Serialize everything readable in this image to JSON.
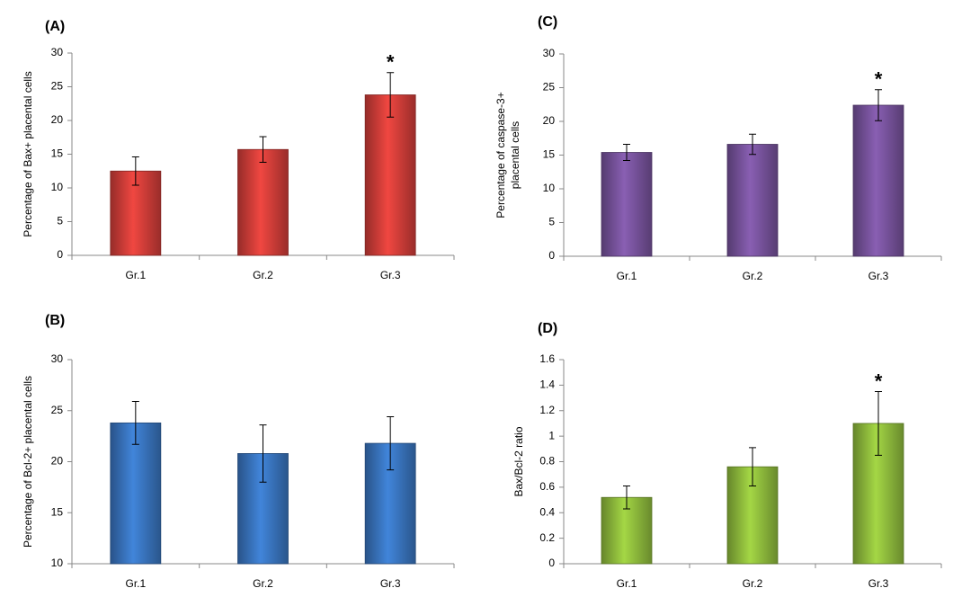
{
  "chart_data": [
    {
      "type": "bar",
      "title": "(A)",
      "ylabel": [
        "Percentage of Bax+ placental cells"
      ],
      "categories": [
        "Gr.1",
        "Gr.2",
        "Gr.3"
      ],
      "values": [
        12.5,
        15.7,
        23.8
      ],
      "errors": [
        2.1,
        1.9,
        3.3
      ],
      "annotations": [
        null,
        null,
        "*"
      ],
      "color": "#d63f3a",
      "ylim": [
        0,
        30
      ],
      "yticks": [
        0,
        5,
        10,
        15,
        20,
        25,
        30
      ]
    },
    {
      "type": "bar",
      "title": "(C)",
      "ylabel": [
        "Percentage of caspase-3+",
        "placental cells"
      ],
      "categories": [
        "Gr.1",
        "Gr.2",
        "Gr.3"
      ],
      "values": [
        15.4,
        16.6,
        22.4
      ],
      "errors": [
        1.2,
        1.5,
        2.3
      ],
      "annotations": [
        null,
        null,
        "*"
      ],
      "color": "#7a55a0",
      "ylim": [
        0,
        30
      ],
      "yticks": [
        0,
        5,
        10,
        15,
        20,
        25,
        30
      ]
    },
    {
      "type": "bar",
      "title": "(B)",
      "ylabel": [
        "Percentage of Bcl-2+ placental cells"
      ],
      "categories": [
        "Gr.1",
        "Gr.2",
        "Gr.3"
      ],
      "values": [
        23.8,
        20.8,
        21.8
      ],
      "errors": [
        2.1,
        2.8,
        2.6
      ],
      "color": "#3a77c3",
      "ylim": [
        10,
        30
      ],
      "yticks": [
        10,
        15,
        20,
        25,
        30
      ]
    },
    {
      "type": "bar",
      "title": "(D)",
      "ylabel": [
        "Bax/Bcl-2 ratio"
      ],
      "categories": [
        "Gr.1",
        "Gr.2",
        "Gr.3"
      ],
      "values": [
        0.52,
        0.76,
        1.1
      ],
      "errors": [
        0.09,
        0.15,
        0.25
      ],
      "annotations": [
        null,
        null,
        "*"
      ],
      "color": "#92c03e",
      "ylim": [
        0,
        1.6
      ],
      "yticks": [
        0,
        0.2,
        0.4,
        0.6,
        0.8,
        1,
        1.2,
        1.4,
        1.6
      ]
    }
  ]
}
